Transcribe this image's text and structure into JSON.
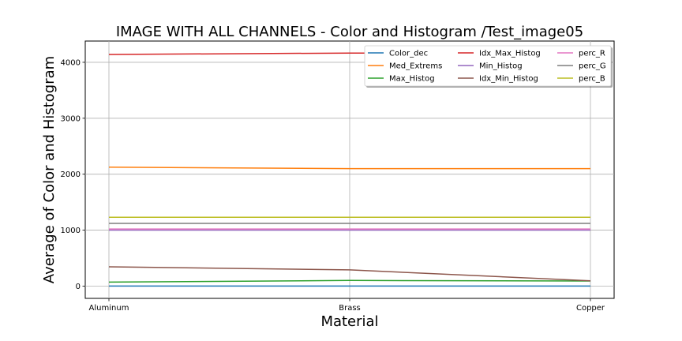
{
  "chart_data": {
    "type": "line",
    "title": "IMAGE WITH ALL CHANNELS - Color and Histogram /Test_image05",
    "xlabel": "Material",
    "ylabel": "Average of Color and Histogram",
    "categories": [
      "Aluminum",
      "Brass",
      "Copper"
    ],
    "ylim": [
      -220,
      4380
    ],
    "yticks": [
      0,
      1000,
      2000,
      3000,
      4000
    ],
    "grid": true,
    "legend_position": "top-right",
    "series": [
      {
        "name": "Color_dec",
        "color": "#1f77b4",
        "values": [
          0,
          0,
          0
        ]
      },
      {
        "name": "Med_Extrems",
        "color": "#ff7f0e",
        "values": [
          2125,
          2100,
          2100
        ]
      },
      {
        "name": "Max_Histog",
        "color": "#2ca02c",
        "values": [
          70,
          100,
          90
        ]
      },
      {
        "name": "Idx_Max_Histog",
        "color": "#d62728",
        "values": [
          4140,
          4165,
          4160
        ]
      },
      {
        "name": "Min_Histog",
        "color": "#9467bd",
        "values": [
          1000,
          1000,
          1000
        ]
      },
      {
        "name": "Idx_Min_Histog",
        "color": "#8c564b",
        "values": [
          345,
          290,
          95
        ]
      },
      {
        "name": "perc_R",
        "color": "#e377c2",
        "values": [
          1020,
          1020,
          1020
        ]
      },
      {
        "name": "perc_G",
        "color": "#7f7f7f",
        "values": [
          1120,
          1120,
          1120
        ]
      },
      {
        "name": "perc_B",
        "color": "#bcbd22",
        "values": [
          1230,
          1230,
          1230
        ]
      }
    ]
  }
}
